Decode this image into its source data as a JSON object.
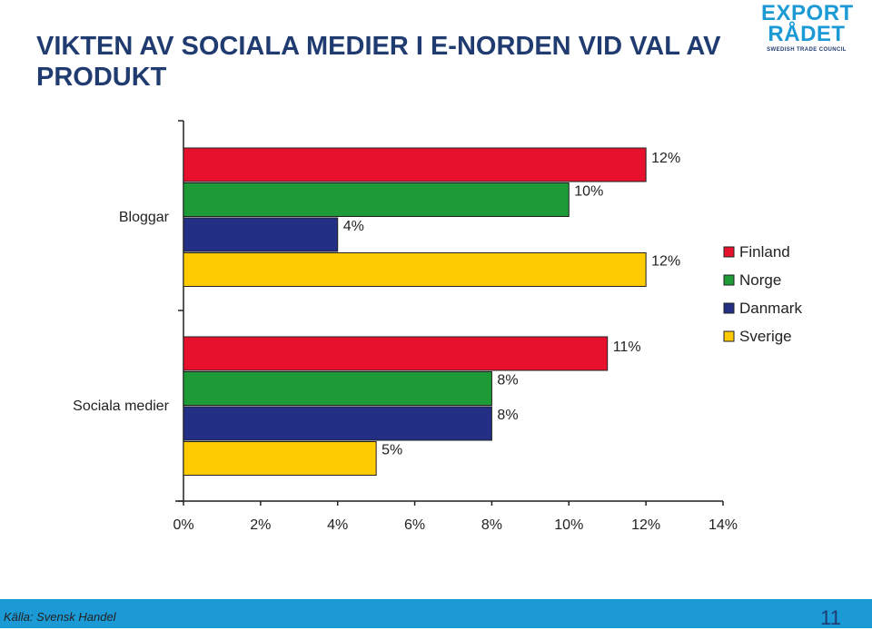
{
  "page": {
    "title": "VIKTEN AV SOCIALA MEDIER I E-NORDEN VID VAL AV PRODUKT",
    "source": "Källa: Svensk Handel",
    "page_number": "11"
  },
  "logo": {
    "line1": "EXPORT",
    "line2": "RÅDET",
    "tagline": "SWEDISH TRADE COUNCIL"
  },
  "colors": {
    "title": "#1f3b70",
    "footer": "#1b9ad6",
    "Finland": "#e8112d",
    "Norge": "#1e9a37",
    "Danmark": "#232e85",
    "Sverige": "#fecb00"
  },
  "chart_data": {
    "type": "bar",
    "orientation": "horizontal",
    "title": "",
    "xlabel": "",
    "ylabel": "",
    "xlim": [
      0,
      14
    ],
    "xticks": [
      0,
      2,
      4,
      6,
      8,
      10,
      12,
      14
    ],
    "tick_labels": [
      "0%",
      "2%",
      "4%",
      "6%",
      "8%",
      "10%",
      "12%",
      "14%"
    ],
    "categories": [
      "Bloggar",
      "Sociala medier"
    ],
    "series": [
      {
        "name": "Finland",
        "values": [
          12,
          11
        ],
        "labels": [
          "12%",
          "11%"
        ]
      },
      {
        "name": "Norge",
        "values": [
          10,
          8
        ],
        "labels": [
          "10%",
          "8%"
        ]
      },
      {
        "name": "Danmark",
        "values": [
          4,
          8
        ],
        "labels": [
          "4%",
          "8%"
        ]
      },
      {
        "name": "Sverige",
        "values": [
          12,
          5
        ],
        "labels": [
          "12%",
          "5%"
        ]
      }
    ],
    "legend": {
      "position": "right",
      "entries": [
        "Finland",
        "Norge",
        "Danmark",
        "Sverige"
      ]
    },
    "grid": false
  }
}
